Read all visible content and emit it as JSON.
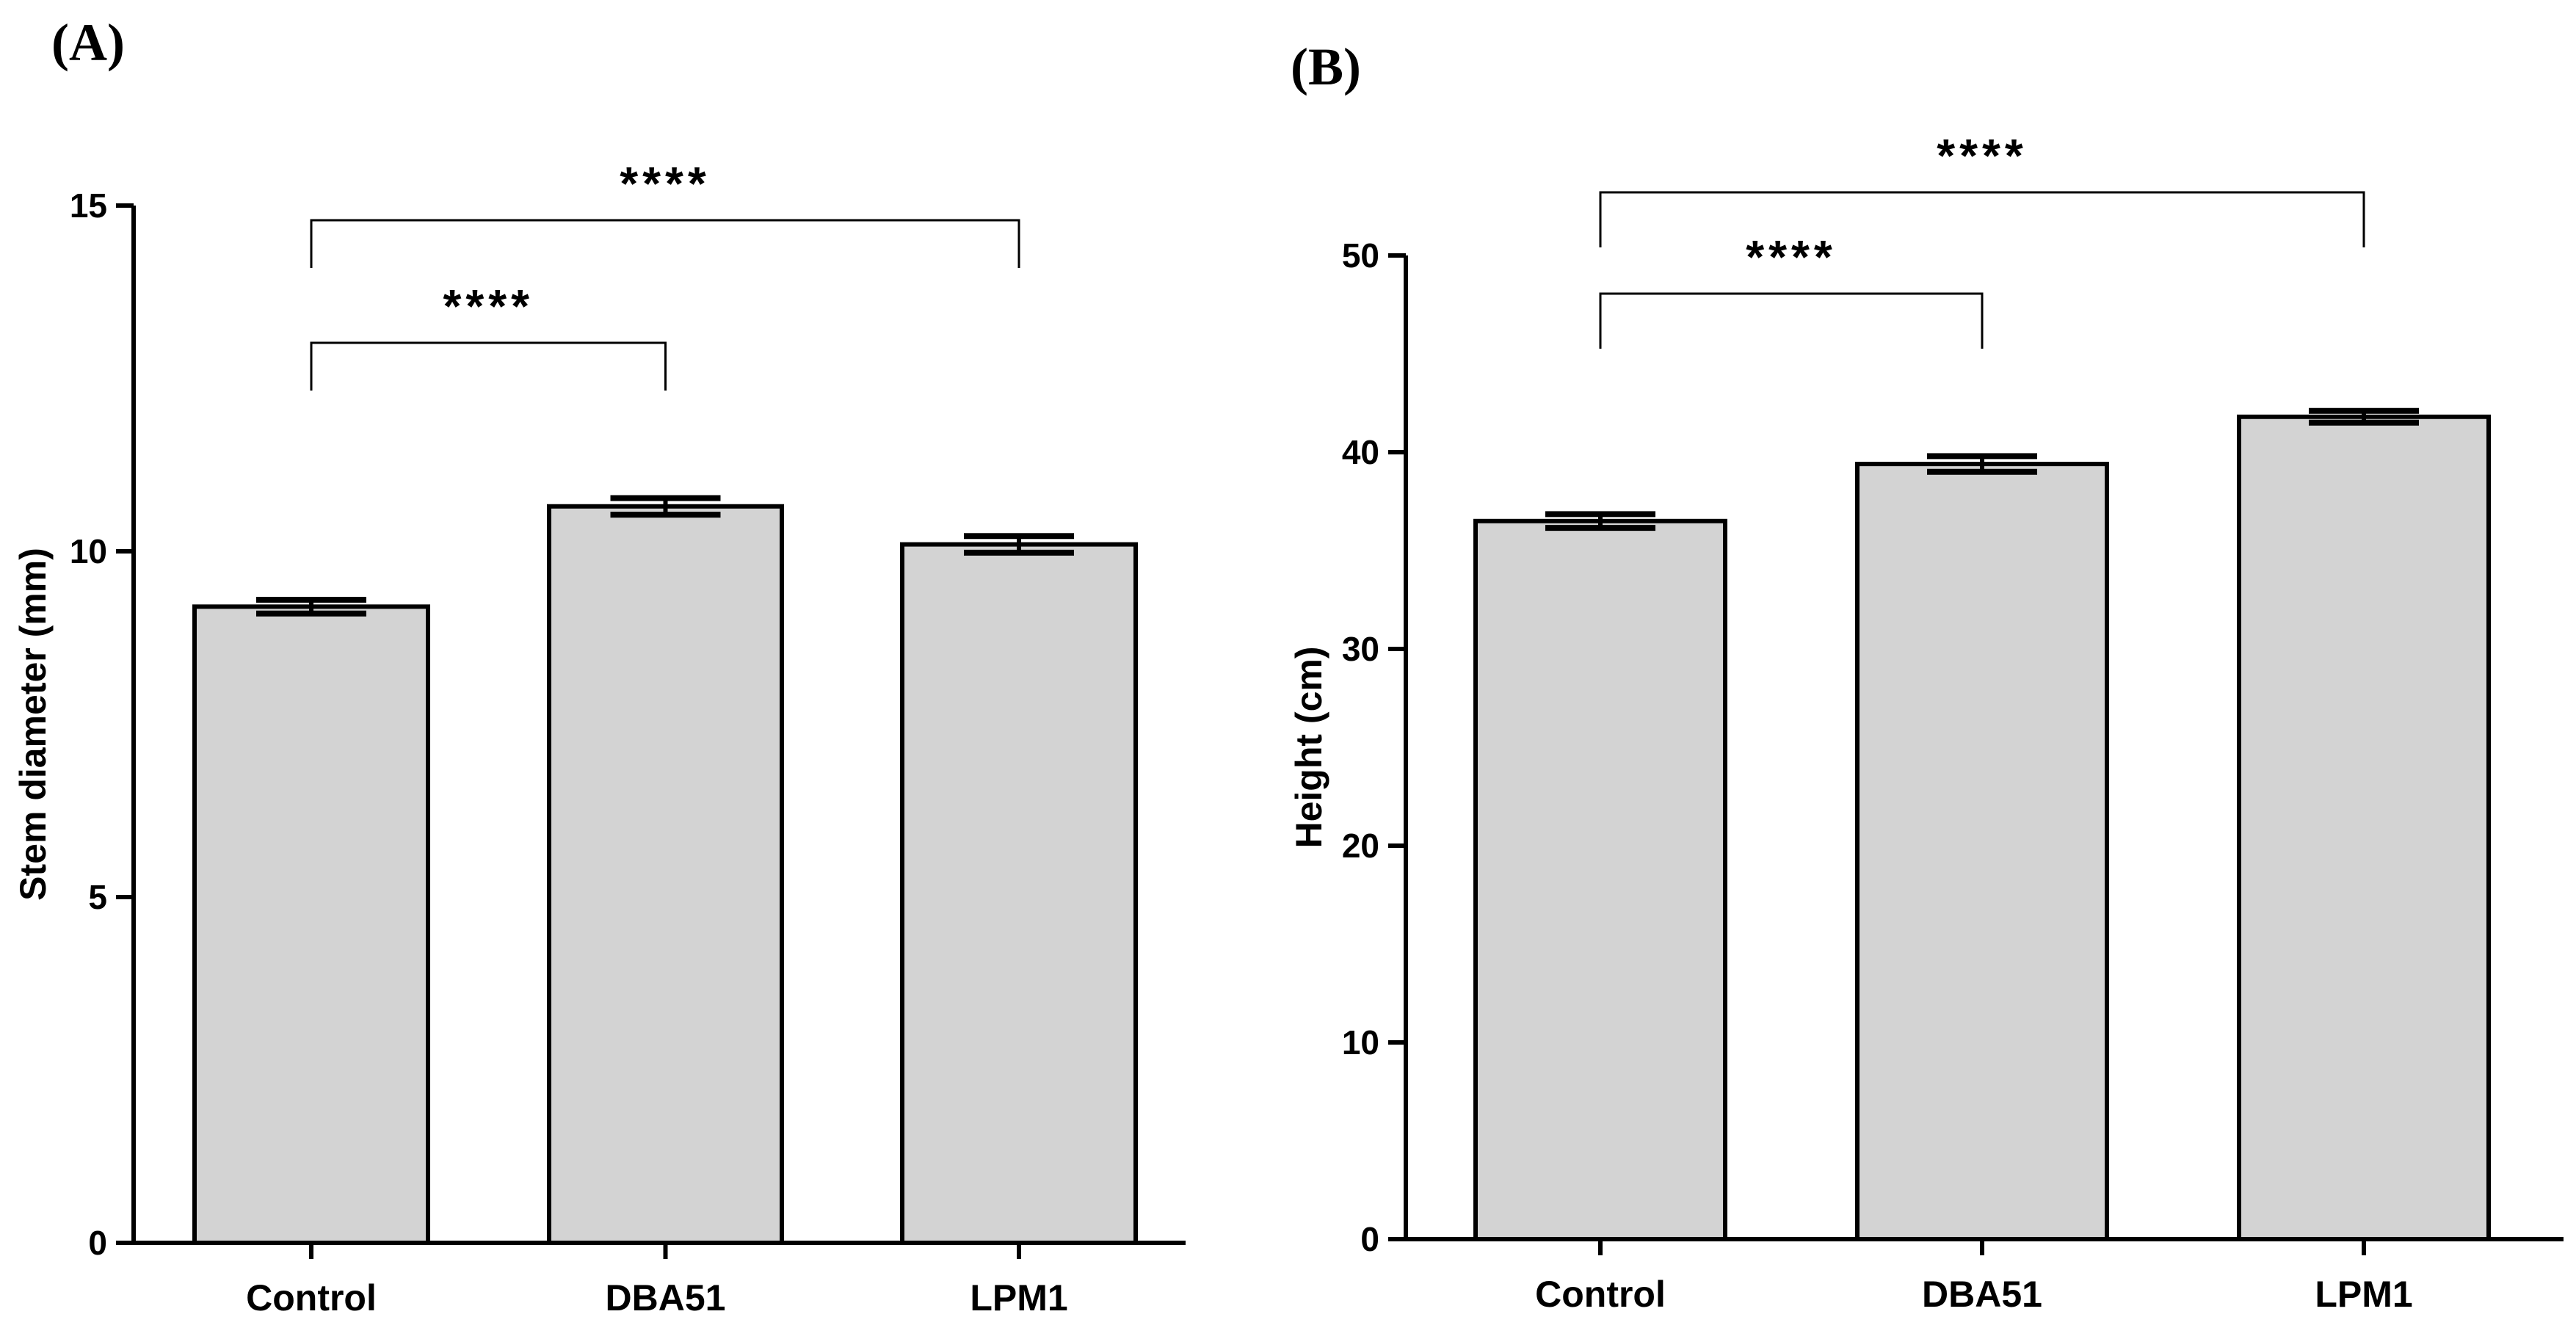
{
  "chart_data": [
    {
      "panel": "(A)",
      "type": "bar",
      "categories": [
        "Control",
        "DBA51",
        "LPM1"
      ],
      "values": [
        9.2,
        10.65,
        10.1
      ],
      "errors": [
        0.1,
        0.12,
        0.12
      ],
      "ylabel": "Stem diameter (mm)",
      "xlabel": "",
      "ylim": [
        0,
        15
      ],
      "yticks": [
        0,
        5,
        10,
        15
      ],
      "bar_color": "#d3d3d3",
      "grid": false,
      "significance": [
        {
          "from": "Control",
          "to": "DBA51",
          "label": "****"
        },
        {
          "from": "Control",
          "to": "LPM1",
          "label": "****"
        }
      ]
    },
    {
      "panel": "(B)",
      "type": "bar",
      "categories": [
        "Control",
        "DBA51",
        "LPM1"
      ],
      "values": [
        36.5,
        39.4,
        41.8
      ],
      "errors": [
        0.35,
        0.4,
        0.3
      ],
      "ylabel": "Height (cm)",
      "xlabel": "",
      "ylim": [
        0,
        50
      ],
      "yticks": [
        0,
        10,
        20,
        30,
        40,
        50
      ],
      "bar_color": "#d3d3d3",
      "grid": false,
      "significance": [
        {
          "from": "Control",
          "to": "DBA51",
          "label": "****"
        },
        {
          "from": "Control",
          "to": "LPM1",
          "label": "****"
        }
      ]
    }
  ]
}
